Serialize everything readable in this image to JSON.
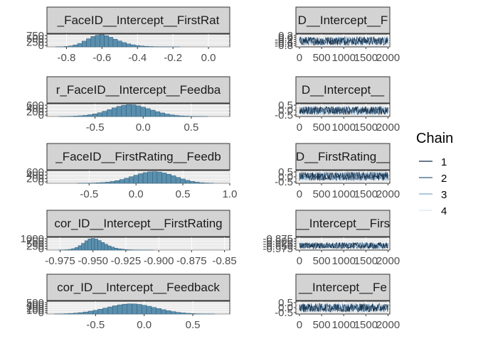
{
  "chart_data": [
    {
      "type": "bar",
      "panel": "histogram",
      "strip_title": "_FaceID__Intercept__FirstRat",
      "xlim": [
        -0.91,
        0.12
      ],
      "x_ticks": [
        -0.8,
        -0.6,
        -0.4,
        -0.2,
        0.0
      ],
      "x_tick_labels": [
        "-0.8",
        "-0.6",
        "-0.4",
        "-0.2",
        "0.0"
      ],
      "ylim": [
        0,
        800
      ],
      "y_tick_labels": [
        "750",
        "500",
        "250",
        "0"
      ],
      "y_ticks": [
        750,
        500,
        250,
        0
      ],
      "bar_width": 0.025,
      "bins_x": [
        -0.85,
        -0.825,
        -0.8,
        -0.775,
        -0.75,
        -0.725,
        -0.7,
        -0.675,
        -0.65,
        -0.625,
        -0.6,
        -0.575,
        -0.55,
        -0.525,
        -0.5,
        -0.475,
        -0.45,
        -0.425,
        -0.4,
        -0.375,
        -0.35,
        -0.325,
        -0.3,
        -0.275,
        -0.25,
        -0.225,
        -0.2,
        -0.175
      ],
      "values": [
        4,
        10,
        25,
        60,
        120,
        220,
        360,
        510,
        650,
        730,
        760,
        700,
        600,
        480,
        370,
        270,
        190,
        130,
        85,
        55,
        34,
        20,
        12,
        8,
        5,
        3,
        2,
        1
      ]
    },
    {
      "type": "line",
      "panel": "trace",
      "strip_title": "D__Intercept__F",
      "xlim": [
        -80,
        2040
      ],
      "x_ticks": [
        0,
        500,
        1000,
        1500,
        2000
      ],
      "x_tick_labels": [
        "0",
        "500",
        "1000",
        "1500",
        "2000"
      ],
      "ylim": [
        -0.92,
        0.35
      ],
      "y_tick_labels": [
        "0.2",
        "0.0",
        "-0.2",
        "-0.4",
        "-0.6",
        "-0.8"
      ],
      "y_ticks": [
        0.2,
        0.0,
        -0.2,
        -0.4,
        -0.6,
        -0.8
      ],
      "band": [
        -0.78,
        0.12
      ]
    },
    {
      "type": "bar",
      "panel": "histogram",
      "strip_title": "r_FaceID__Intercept__Feedba",
      "xlim": [
        -1.0,
        0.9
      ],
      "x_ticks": [
        -0.5,
        0.0,
        0.5
      ],
      "x_tick_labels": [
        "-0.5",
        "0.0",
        "0.5"
      ],
      "ylim": [
        0,
        680
      ],
      "y_tick_labels": [
        "600",
        "400",
        "200",
        "0"
      ],
      "y_ticks": [
        600,
        400,
        200,
        0
      ],
      "bar_width": 0.05,
      "bins_x": [
        -0.85,
        -0.8,
        -0.75,
        -0.7,
        -0.65,
        -0.6,
        -0.55,
        -0.5,
        -0.45,
        -0.4,
        -0.35,
        -0.3,
        -0.25,
        -0.2,
        -0.15,
        -0.1,
        -0.05,
        0.0,
        0.05,
        0.1,
        0.15,
        0.2,
        0.25,
        0.3,
        0.35,
        0.4,
        0.45,
        0.5,
        0.55,
        0.6,
        0.65
      ],
      "values": [
        3,
        6,
        12,
        22,
        38,
        60,
        95,
        140,
        200,
        280,
        370,
        460,
        540,
        600,
        630,
        620,
        570,
        500,
        420,
        340,
        260,
        190,
        130,
        85,
        55,
        33,
        20,
        11,
        6,
        3,
        1
      ]
    },
    {
      "type": "line",
      "panel": "trace",
      "strip_title": "D__Intercept__",
      "xlim": [
        -80,
        2040
      ],
      "x_ticks": [
        0,
        500,
        1000,
        1500,
        2000
      ],
      "x_tick_labels": [
        "0",
        "500",
        "1000",
        "1500",
        "2000"
      ],
      "ylim": [
        -1.0,
        0.9
      ],
      "y_tick_labels": [
        "0.5",
        "0.0",
        "-0.5"
      ],
      "y_ticks": [
        0.5,
        0.0,
        -0.5
      ],
      "band": [
        -0.75,
        0.55
      ]
    },
    {
      "type": "bar",
      "panel": "histogram",
      "strip_title": "_FaceID__FirstRating__Feedb",
      "xlim": [
        -0.95,
        1.0
      ],
      "x_ticks": [
        -0.5,
        0.0,
        0.5,
        1.0
      ],
      "x_tick_labels": [
        "-0.5",
        "0.0",
        "0.5",
        "1.0"
      ],
      "ylim": [
        0,
        680
      ],
      "y_tick_labels": [
        "600",
        "400",
        "200",
        "0"
      ],
      "y_ticks": [
        600,
        400,
        200,
        0
      ],
      "bar_width": 0.05,
      "bins_x": [
        -0.6,
        -0.55,
        -0.5,
        -0.45,
        -0.4,
        -0.35,
        -0.3,
        -0.25,
        -0.2,
        -0.15,
        -0.1,
        -0.05,
        0.0,
        0.05,
        0.1,
        0.15,
        0.2,
        0.25,
        0.3,
        0.35,
        0.4,
        0.45,
        0.5,
        0.55,
        0.6,
        0.65,
        0.7,
        0.75,
        0.8
      ],
      "values": [
        2,
        4,
        8,
        14,
        24,
        40,
        62,
        95,
        140,
        200,
        270,
        350,
        430,
        510,
        570,
        610,
        620,
        600,
        550,
        480,
        400,
        310,
        230,
        160,
        100,
        60,
        32,
        15,
        6
      ]
    },
    {
      "type": "line",
      "panel": "trace",
      "strip_title": "D__FirstRating__",
      "xlim": [
        -80,
        2040
      ],
      "x_ticks": [
        0,
        500,
        1000,
        1500,
        2000
      ],
      "x_tick_labels": [
        "0",
        "500",
        "1000",
        "1500",
        "2000"
      ],
      "ylim": [
        -0.95,
        1.0
      ],
      "y_tick_labels": [
        "0.5",
        "0.0",
        "-0.5"
      ],
      "y_ticks": [
        0.5,
        0.0,
        -0.5
      ],
      "band": [
        -0.6,
        0.8
      ]
    },
    {
      "type": "bar",
      "panel": "histogram",
      "strip_title": "cor_ID__Intercept__FirstRating",
      "xlim": [
        -0.985,
        -0.846
      ],
      "x_ticks": [
        -0.975,
        -0.95,
        -0.925,
        -0.9,
        -0.875,
        -0.85
      ],
      "x_tick_labels": [
        "-0.975",
        "-0.950",
        "-0.925",
        "-0.900",
        "-0.875",
        "-0.85"
      ],
      "ylim": [
        0,
        1100
      ],
      "y_tick_labels": [
        "1000",
        "750",
        "500",
        "250",
        "0"
      ],
      "y_ticks": [
        1000,
        750,
        500,
        250,
        0
      ],
      "bar_width": 0.0025,
      "bins_x": [
        -0.975,
        -0.9725,
        -0.97,
        -0.9675,
        -0.965,
        -0.9625,
        -0.96,
        -0.9575,
        -0.955,
        -0.9525,
        -0.95,
        -0.9475,
        -0.945,
        -0.9425,
        -0.94,
        -0.9375,
        -0.935,
        -0.9325,
        -0.93,
        -0.9275,
        -0.925,
        -0.9225,
        -0.92,
        -0.9175,
        -0.915,
        -0.9125,
        -0.91,
        -0.9075,
        -0.905
      ],
      "values": [
        5,
        12,
        28,
        60,
        120,
        220,
        380,
        580,
        800,
        960,
        1010,
        950,
        820,
        660,
        500,
        360,
        250,
        170,
        110,
        72,
        46,
        29,
        18,
        11,
        7,
        4,
        3,
        2,
        1
      ]
    },
    {
      "type": "line",
      "panel": "trace",
      "strip_title": "__Intercept__Firs",
      "xlim": [
        -80,
        2040
      ],
      "x_ticks": [
        0,
        500,
        1000,
        1500,
        2000
      ],
      "x_tick_labels": [
        "0",
        "500",
        "1000",
        "1500",
        "2000"
      ],
      "ylim": [
        -0.985,
        -0.846
      ],
      "y_tick_labels": [
        "-0.875",
        "-0.900",
        "-0.925",
        "-0.950",
        "-0.975"
      ],
      "y_ticks": [
        -0.875,
        -0.9,
        -0.925,
        -0.95,
        -0.975
      ],
      "band": [
        -0.975,
        -0.9
      ]
    },
    {
      "type": "bar",
      "panel": "histogram",
      "strip_title": "cor_ID__Intercept__Feedback",
      "xlim": [
        -1.0,
        0.88
      ],
      "x_ticks": [
        -0.5,
        0.0,
        0.5
      ],
      "x_tick_labels": [
        "-0.5",
        "0.0",
        "0.5"
      ],
      "ylim": [
        0,
        560
      ],
      "y_tick_labels": [
        "500",
        "400",
        "300",
        "200",
        "100",
        "0"
      ],
      "y_ticks": [
        500,
        400,
        300,
        200,
        100,
        0
      ],
      "bar_width": 0.05,
      "bins_x": [
        -0.9,
        -0.85,
        -0.8,
        -0.75,
        -0.7,
        -0.65,
        -0.6,
        -0.55,
        -0.5,
        -0.45,
        -0.4,
        -0.35,
        -0.3,
        -0.25,
        -0.2,
        -0.15,
        -0.1,
        -0.05,
        0.0,
        0.05,
        0.1,
        0.15,
        0.2,
        0.25,
        0.3,
        0.35,
        0.4,
        0.45,
        0.5,
        0.55,
        0.6,
        0.65,
        0.7
      ],
      "values": [
        3,
        7,
        14,
        25,
        40,
        62,
        90,
        125,
        165,
        210,
        260,
        310,
        360,
        400,
        430,
        445,
        440,
        420,
        385,
        340,
        290,
        240,
        190,
        145,
        105,
        72,
        48,
        30,
        18,
        10,
        5,
        3,
        1
      ]
    },
    {
      "type": "line",
      "panel": "trace",
      "strip_title": "__Intercept__Fe",
      "xlim": [
        -80,
        2040
      ],
      "x_ticks": [
        0,
        500,
        1000,
        1500,
        2000
      ],
      "x_tick_labels": [
        "0",
        "500",
        "1000",
        "1500",
        "2000"
      ],
      "ylim": [
        -1.0,
        0.88
      ],
      "y_tick_labels": [
        "0.5",
        "0.0",
        "-0.5"
      ],
      "y_ticks": [
        0.5,
        0.0,
        -0.5
      ],
      "band": [
        -0.75,
        0.6
      ]
    }
  ],
  "legend": {
    "title": "Chain",
    "placement": "right",
    "entries": [
      {
        "label": "1",
        "color": "#132b43"
      },
      {
        "label": "2",
        "color": "#335c81"
      },
      {
        "label": "3",
        "color": "#7fa7c9"
      },
      {
        "label": "4",
        "color": "#d6e6f4"
      }
    ]
  },
  "colors": {
    "hist_fill": "#5a8fae",
    "hist_edge": "#2d5a78",
    "strip_bg": "#d3d3d3",
    "panel_bg": "#ebebeb",
    "grid": "#ffffff"
  }
}
